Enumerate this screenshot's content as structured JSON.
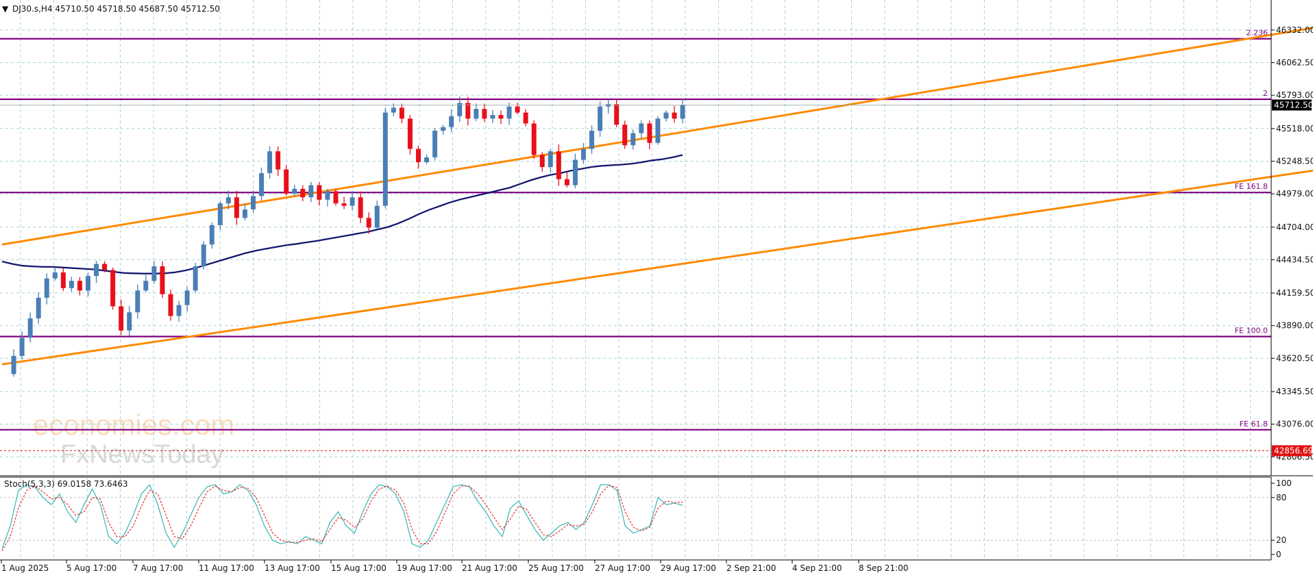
{
  "header": {
    "arrow": "▼",
    "text": "DJ30.s,H4  45710.50 45718.50 45687.50 45712.50"
  },
  "stoch": {
    "text": "Stoch(5,3,3) 69.0158 73.6463",
    "ticks": [
      "100",
      "80",
      "20",
      "0"
    ]
  },
  "watermark": {
    "line1": "economies.com",
    "line2": "FxNewsToday"
  },
  "colors": {
    "bull": "#4a7fb5",
    "bear": "#e8101a",
    "ma": "#14166e",
    "channel": "#ff8a00",
    "level": "#800080",
    "stochK": "#33b5b5",
    "stochD": "#e83030",
    "grid": "#a8d0d8"
  },
  "chart_data": [
    {
      "type": "candlestick",
      "title": "DJ30.s,H4",
      "ylim": [
        42650,
        46580
      ],
      "y_ticks": [
        "46332.00",
        "46062.50",
        "45793.00",
        "45518.00",
        "45248.50",
        "44979.00",
        "44704.00",
        "44434.50",
        "44159.50",
        "43890.00",
        "43620.50",
        "43345.50",
        "43076.00",
        "42806.50"
      ],
      "x_ticks": [
        "1 Aug 2025",
        "5 Aug 17:00",
        "7 Aug 17:00",
        "11 Aug 17:00",
        "13 Aug 17:00",
        "15 Aug 17:00",
        "19 Aug 17:00",
        "21 Aug 17:00",
        "25 Aug 17:00",
        "27 Aug 17:00",
        "29 Aug 17:00",
        "2 Sep 21:00",
        "4 Sep 21:00",
        "8 Sep 21:00"
      ],
      "last_price": "45712.50",
      "dashed_level": {
        "label": "42856.69",
        "value": 42856.69
      },
      "levels": [
        {
          "label": "2.236",
          "value": 46260
        },
        {
          "label": "2",
          "value": 45760
        },
        {
          "label": "FE 161.8",
          "value": 44990
        },
        {
          "label": "FE 100.0",
          "value": 43800
        },
        {
          "label": "FE 61.8",
          "value": 43030
        }
      ],
      "close_path": [
        43490,
        43640,
        43790,
        43950,
        44120,
        44280,
        44330,
        44200,
        44260,
        44180,
        44300,
        44400,
        44350,
        44050,
        43850,
        44000,
        44180,
        44260,
        44380,
        44150,
        43970,
        44060,
        44180,
        44380,
        44560,
        44720,
        44900,
        44950,
        44780,
        44850,
        44960,
        45150,
        45330,
        45180,
        44980,
        45020,
        44950,
        45050,
        44930,
        45000,
        44900,
        44880,
        44950,
        44780,
        44700,
        44880,
        45650,
        45690,
        45600,
        45350,
        45240,
        45280,
        45500,
        45530,
        45620,
        45730,
        45600,
        45680,
        45600,
        45630,
        45600,
        45700,
        45650,
        45560,
        45300,
        45200,
        45330,
        45100,
        45050,
        45260,
        45350,
        45500,
        45700,
        45720,
        45550,
        45380,
        45480,
        45560,
        45400,
        45600,
        45650,
        45600,
        45712.5
      ],
      "ma_values": [
        44420,
        44400,
        44385,
        44380,
        44375,
        44375,
        44370,
        44365,
        44360,
        44355,
        44345,
        44335,
        44325,
        44322,
        44320,
        44320,
        44322,
        44330,
        44345,
        44365,
        44390,
        44415,
        44440,
        44465,
        44490,
        44510,
        44525,
        44540,
        44555,
        44565,
        44578,
        44590,
        44605,
        44620,
        44635,
        44650,
        44665,
        44685,
        44705,
        44735,
        44770,
        44810,
        44845,
        44875,
        44905,
        44930,
        44950,
        44970,
        44990,
        45010,
        45030,
        45060,
        45090,
        45115,
        45135,
        45150,
        45170,
        45185,
        45200,
        45210,
        45215,
        45220,
        45228,
        45240,
        45255,
        45265,
        45280,
        45300
      ],
      "channel_upper": {
        "x0": 0,
        "y0": 44560,
        "x1": 1.166,
        "y1": 46580
      },
      "channel_lower": {
        "x0": 0,
        "y0": 43570,
        "x1": 1.368,
        "y1": 45690
      }
    },
    {
      "type": "line",
      "title": "Stoch(5,3,3)",
      "ylim": [
        0,
        100
      ],
      "series": [
        {
          "name": "%K",
          "values": [
            8,
            40,
            90,
            98,
            95,
            80,
            70,
            85,
            60,
            45,
            70,
            92,
            70,
            25,
            15,
            30,
            55,
            85,
            98,
            70,
            30,
            10,
            30,
            55,
            80,
            95,
            98,
            85,
            88,
            98,
            90,
            70,
            40,
            20,
            15,
            18,
            15,
            25,
            20,
            15,
            45,
            60,
            40,
            30,
            60,
            85,
            98,
            95,
            85,
            60,
            15,
            10,
            20,
            45,
            70,
            95,
            98,
            95,
            75,
            60,
            40,
            25,
            65,
            75,
            55,
            35,
            20,
            30,
            40,
            45,
            35,
            45,
            70,
            98,
            98,
            90,
            40,
            30,
            35,
            40,
            80,
            70,
            72,
            69
          ]
        },
        {
          "name": "%D",
          "values": [
            5,
            25,
            65,
            90,
            96,
            88,
            78,
            80,
            70,
            55,
            60,
            80,
            78,
            45,
            25,
            25,
            40,
            68,
            90,
            85,
            55,
            25,
            22,
            40,
            65,
            88,
            96,
            90,
            88,
            94,
            93,
            80,
            55,
            30,
            20,
            17,
            17,
            20,
            22,
            18,
            35,
            52,
            48,
            38,
            50,
            75,
            92,
            96,
            90,
            72,
            35,
            15,
            15,
            32,
            58,
            85,
            96,
            96,
            85,
            70,
            52,
            35,
            50,
            68,
            63,
            45,
            28,
            25,
            33,
            42,
            40,
            42,
            60,
            85,
            97,
            94,
            60,
            38,
            33,
            38,
            65,
            75,
            73,
            73.6
          ]
        }
      ]
    }
  ]
}
